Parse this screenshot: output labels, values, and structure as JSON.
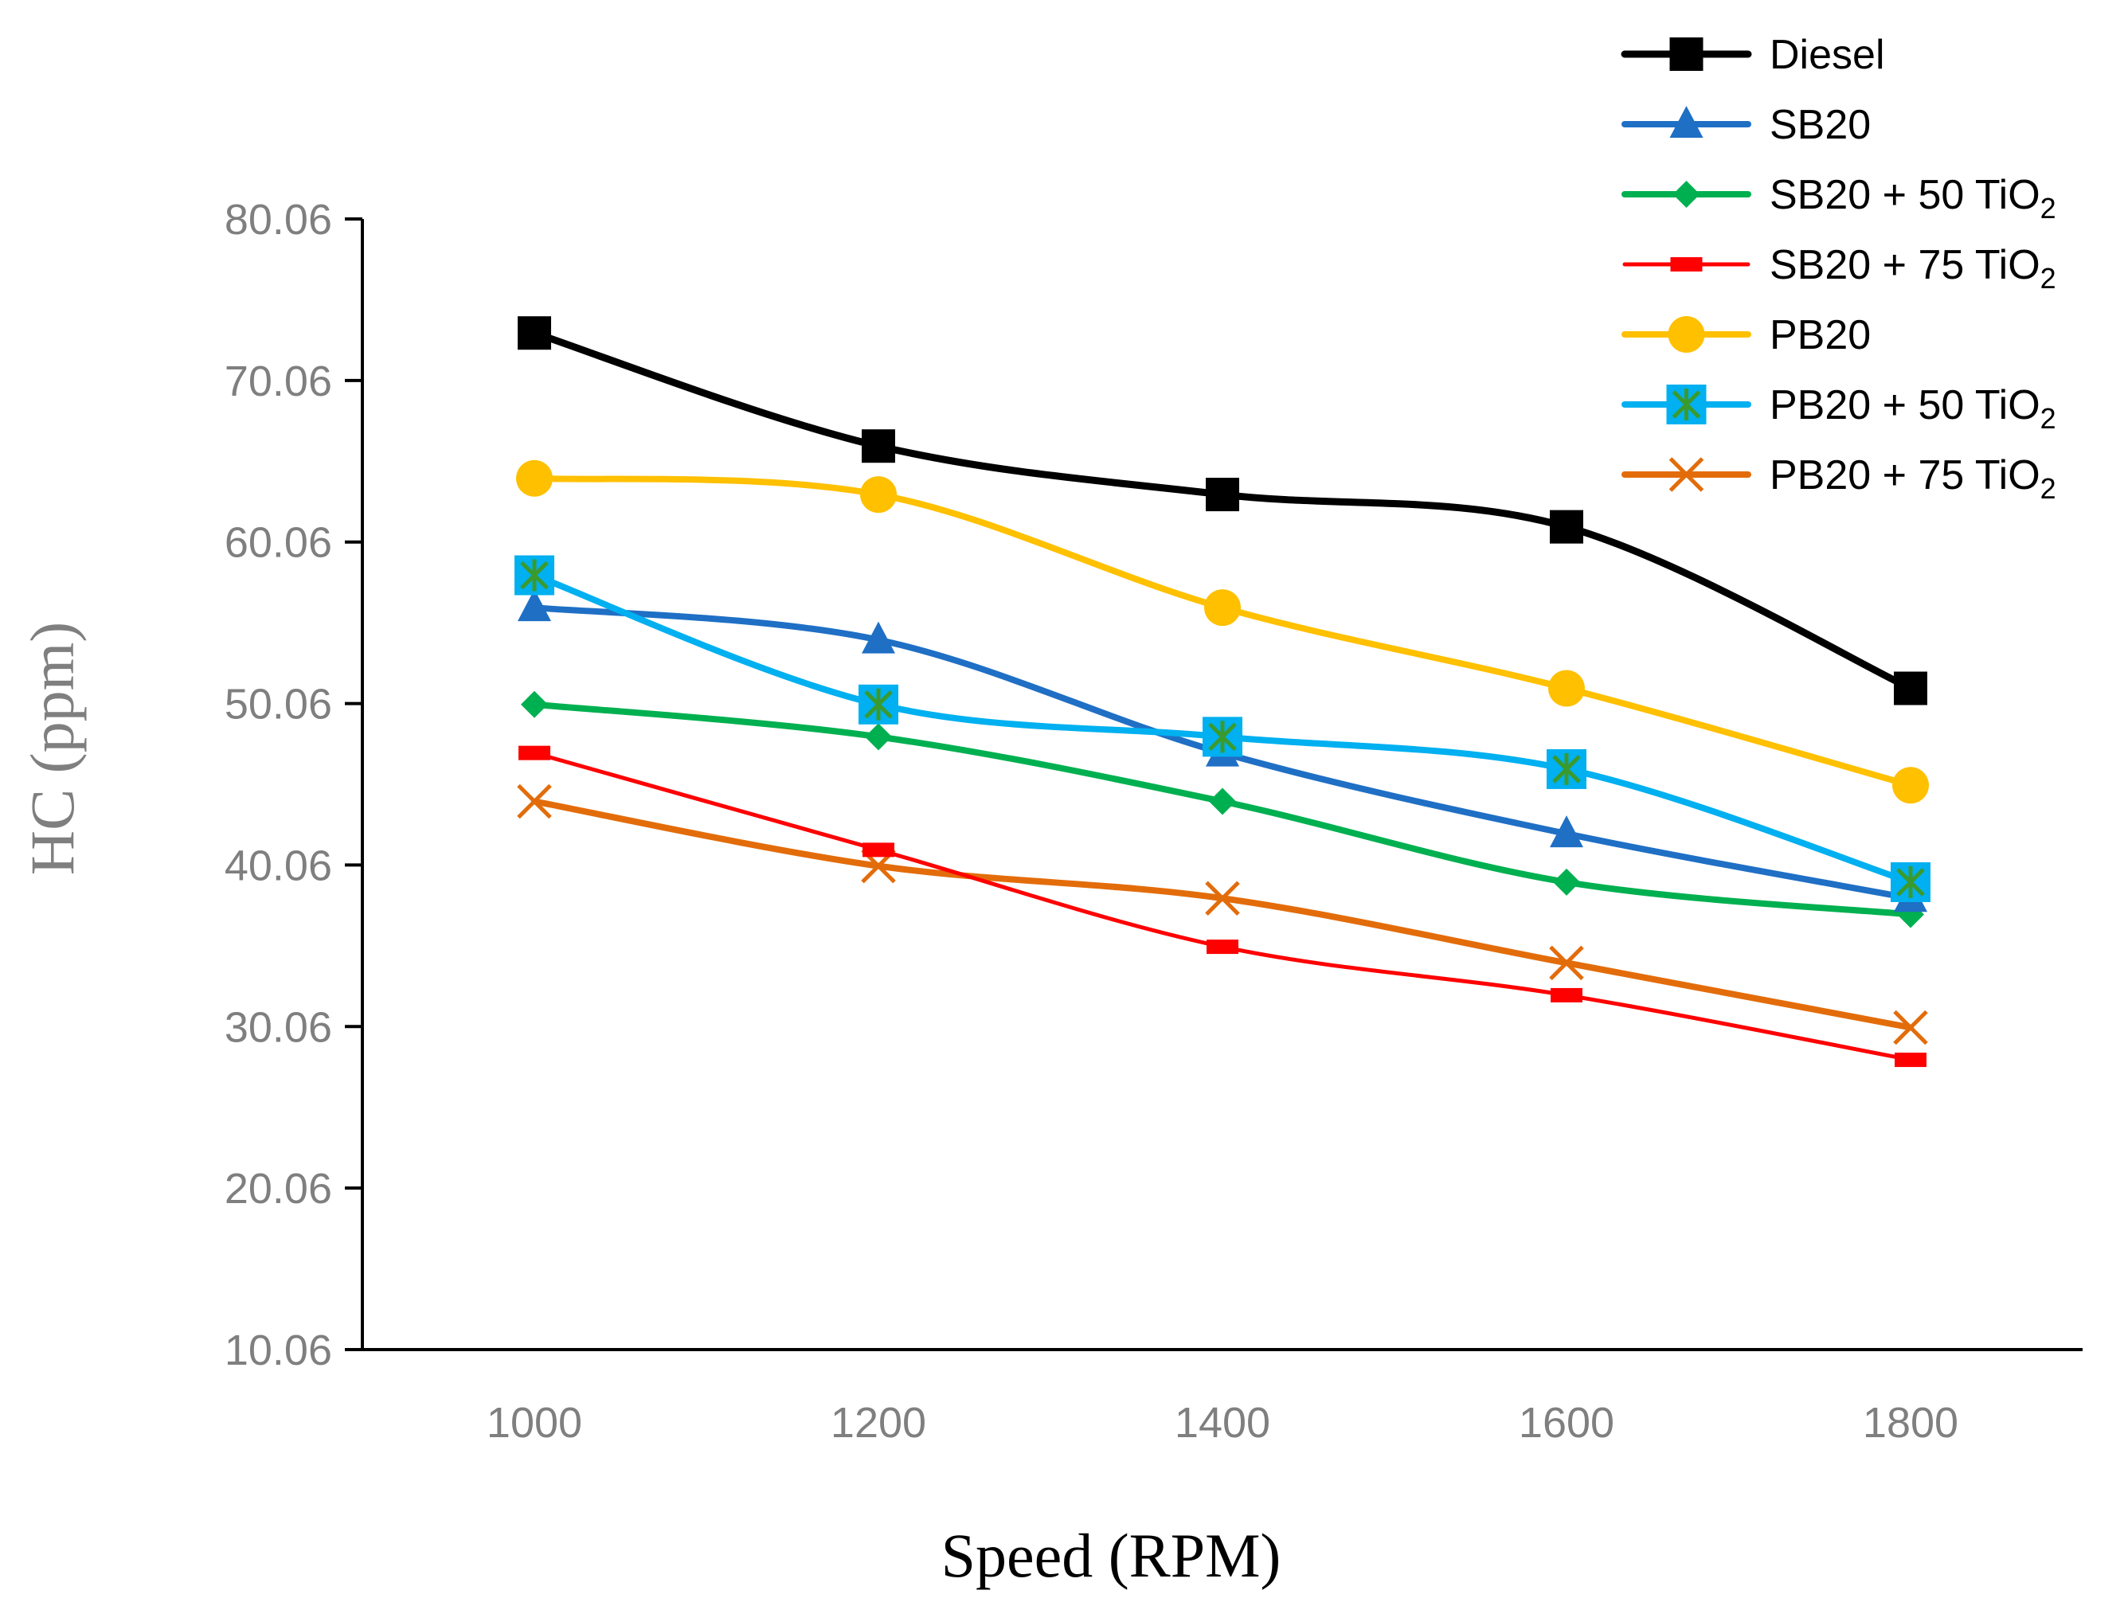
{
  "chart_data": {
    "type": "line",
    "title": "",
    "xlabel": "Speed (RPM)",
    "ylabel": "HC (ppm)",
    "x": [
      1000,
      1200,
      1400,
      1600,
      1800
    ],
    "x_tick_labels": [
      "1000",
      "1200",
      "1400",
      "1600",
      "1800"
    ],
    "xlim": [
      900,
      1900
    ],
    "ylim": [
      10.06,
      80.06
    ],
    "y_ticks": [
      10.06,
      20.06,
      30.06,
      40.06,
      50.06,
      60.06,
      70.06,
      80.06
    ],
    "y_tick_labels": [
      "10.06",
      "20.06",
      "30.06",
      "40.06",
      "50.06",
      "60.06",
      "70.06",
      "80.06"
    ],
    "grid": false,
    "legend_position": "top-right",
    "series": [
      {
        "name": "Diesel",
        "label_base": "Diesel",
        "label_sub": "",
        "color": "#000000",
        "marker": "square",
        "values": [
          73,
          66,
          63,
          61,
          51
        ]
      },
      {
        "name": "SB20",
        "label_base": "SB20",
        "label_sub": "",
        "color": "#1f6fc5",
        "marker": "triangle",
        "values": [
          56,
          54,
          47,
          42,
          38
        ]
      },
      {
        "name": "SB20 + 50 TiO2",
        "label_base": "SB20 + 50 TiO",
        "label_sub": "2",
        "color": "#00b050",
        "marker": "diamond",
        "values": [
          50,
          48,
          44,
          39,
          37
        ]
      },
      {
        "name": "SB20 + 75 TiO2",
        "label_base": "SB20 + 75 TiO",
        "label_sub": "2",
        "color": "#ff0000",
        "marker": "dash",
        "values": [
          47,
          41,
          35,
          32,
          28
        ]
      },
      {
        "name": "PB20",
        "label_base": "PB20",
        "label_sub": "",
        "color": "#ffc000",
        "marker": "circle",
        "values": [
          64,
          63,
          56,
          51,
          45
        ]
      },
      {
        "name": "PB20 + 50 TiO2",
        "label_base": "PB20 + 50 TiO",
        "label_sub": "2",
        "color": "#00b0f0",
        "marker": "square-star",
        "values": [
          58,
          50,
          48,
          46,
          39
        ]
      },
      {
        "name": "PB20 + 75 TiO2",
        "label_base": "PB20 + 75 TiO",
        "label_sub": "2",
        "color": "#e36c0a",
        "marker": "x",
        "values": [
          44,
          40,
          38,
          34,
          30
        ]
      }
    ]
  }
}
